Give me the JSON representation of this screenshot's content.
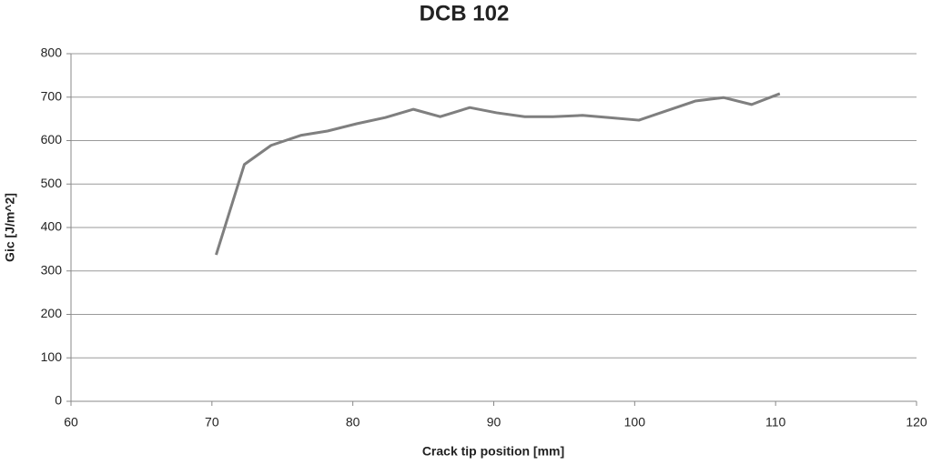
{
  "chart_data": {
    "type": "line",
    "title": "DCB 102",
    "x_label": "Crack tip position [mm]",
    "y_label": "Gic [J/m^2]",
    "x": [
      70.3,
      72.3,
      74.2,
      76.3,
      78.2,
      80.3,
      82.3,
      84.3,
      86.2,
      88.3,
      90.2,
      92.2,
      94.2,
      96.3,
      98.2,
      100.3,
      102.2,
      104.3,
      106.3,
      108.3,
      110.3
    ],
    "series": [
      {
        "color": "#7f7f7f",
        "values": [
          337,
          545,
          589,
          612,
          622,
          639,
          653,
          672,
          655,
          676,
          664,
          655,
          655,
          658,
          653,
          647,
          668,
          691,
          699,
          683,
          708
        ]
      }
    ],
    "xlim": [
      60,
      120
    ],
    "xticks": [
      60,
      70,
      80,
      90,
      100,
      110,
      120
    ],
    "ylim": [
      0,
      800
    ],
    "yticks": [
      0,
      100,
      200,
      300,
      400,
      500,
      600,
      700,
      800
    ],
    "grid": true
  }
}
